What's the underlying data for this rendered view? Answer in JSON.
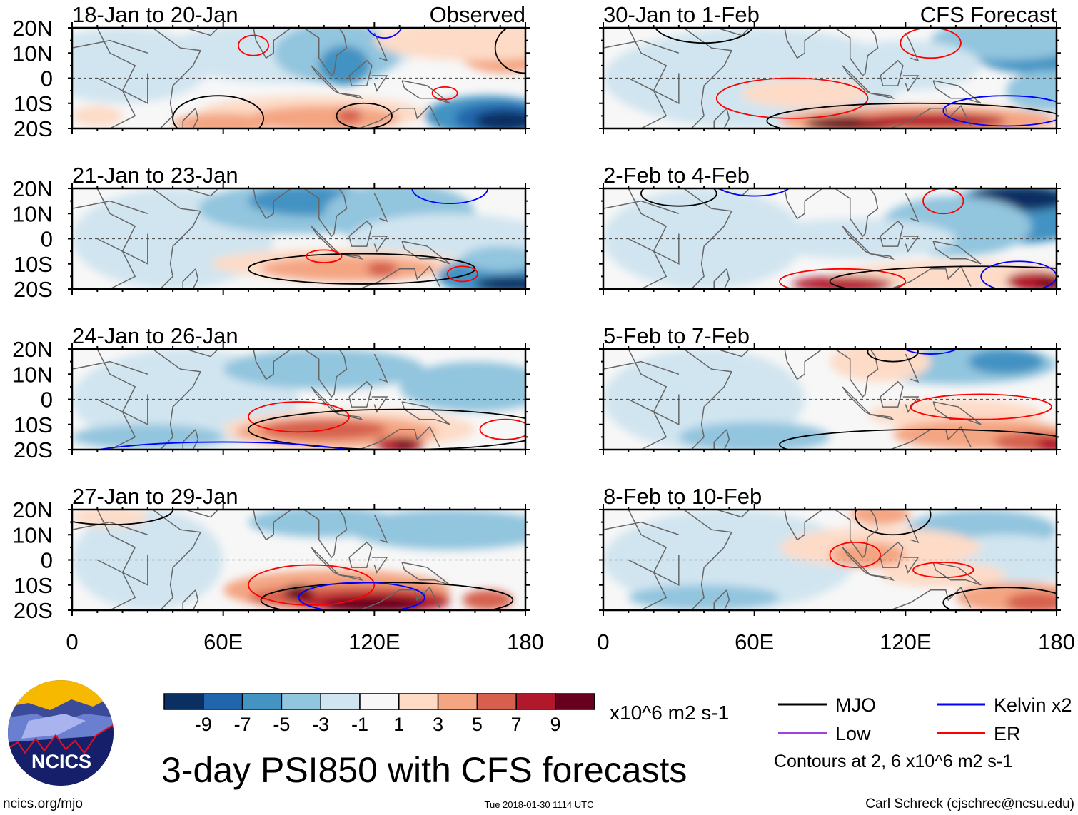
{
  "chart_data": {
    "type": "heatmap",
    "title": "3-day PSI850 with CFS forecasts",
    "variable": "PSI850 anomaly",
    "units": "x10^6 m2 s-1",
    "lat_ticks": [
      "20N",
      "10N",
      "0",
      "10S",
      "20S"
    ],
    "lon_ticks": [
      "0",
      "60E",
      "120E",
      "180"
    ],
    "lon_range": [
      0,
      180
    ],
    "lat_range": [
      -20,
      20
    ],
    "panels": [
      {
        "title": "18-Jan to 20-Jan",
        "label": "Observed"
      },
      {
        "title": "30-Jan to 1-Feb",
        "label": "CFS Forecast"
      },
      {
        "title": "21-Jan to 23-Jan",
        "label": ""
      },
      {
        "title": "2-Feb to 4-Feb",
        "label": ""
      },
      {
        "title": "24-Jan to 26-Jan",
        "label": ""
      },
      {
        "title": "5-Feb to 7-Feb",
        "label": ""
      },
      {
        "title": "27-Jan to 29-Jan",
        "label": ""
      },
      {
        "title": "8-Feb to 10-Feb",
        "label": ""
      }
    ],
    "colorbar": {
      "tick_labels": [
        "-9",
        "-7",
        "-5",
        "-3",
        "-1",
        "1",
        "3",
        "5",
        "7",
        "9"
      ],
      "colors": [
        "#0a2f62",
        "#2166ac",
        "#4393c3",
        "#92c5de",
        "#d1e5f0",
        "#f7f7f7",
        "#fddbc7",
        "#f4a582",
        "#d6604d",
        "#b2182b",
        "#67001f"
      ],
      "units": "x10^6 m2 s-1"
    },
    "legend": [
      {
        "label": "MJO",
        "color": "#000000"
      },
      {
        "label": "Kelvin x2",
        "color": "#0000ff"
      },
      {
        "label": "Low",
        "color": "#a040e0"
      },
      {
        "label": "ER",
        "color": "#ff0000"
      }
    ],
    "contour_note": "Contours at 2, 6 x10^6 m2 s-1"
  },
  "logo": {
    "text": "NCICS"
  },
  "footer": {
    "url": "ncics.org/mjo",
    "timestamp": "Tue 2018-01-30 1114 UTC",
    "credit": "Carl Schreck (cjschrec@ncsu.edu)"
  }
}
